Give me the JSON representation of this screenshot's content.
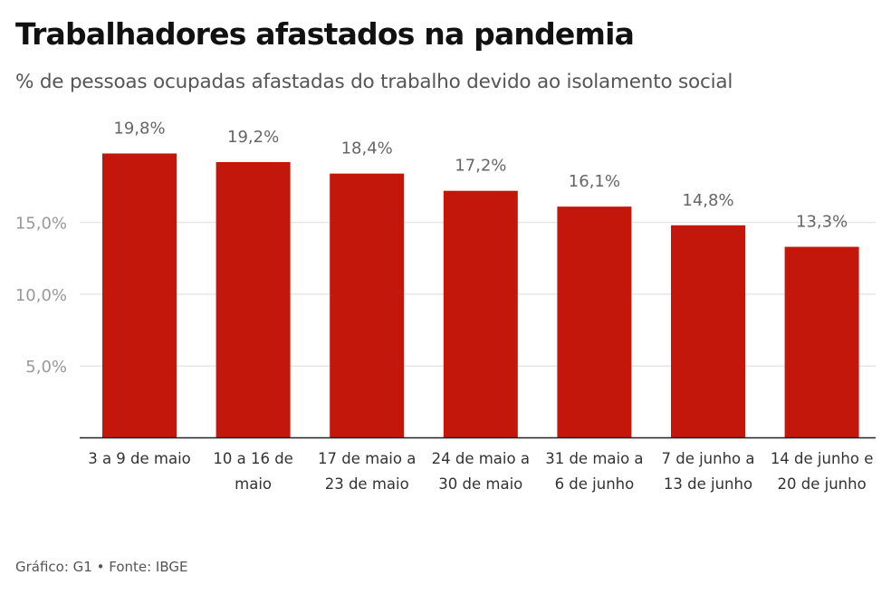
{
  "header": {
    "title": "Trabalhadores afastados na pandemia",
    "subtitle": "% de pessoas ocupadas afastadas do trabalho devido ao isolamento social"
  },
  "footer": {
    "source": "Gráfico: G1 • Fonte: IBGE"
  },
  "chart_data": {
    "type": "bar",
    "title": "Trabalhadores afastados na pandemia",
    "subtitle": "% de pessoas ocupadas afastadas do trabalho devido ao isolamento social",
    "categories": [
      [
        "3 a 9 de maio"
      ],
      [
        "10 a 16 de",
        "maio"
      ],
      [
        "17 de maio a",
        "23 de maio"
      ],
      [
        "24 de maio a",
        "30 de maio"
      ],
      [
        "31 de maio a",
        "6 de junho"
      ],
      [
        "7 de junho a",
        "13 de junho"
      ],
      [
        "14 de junho e",
        "20 de junho"
      ]
    ],
    "values": [
      19.8,
      19.2,
      18.4,
      17.2,
      16.1,
      14.8,
      13.3
    ],
    "data_labels": [
      "19,8%",
      "19,2%",
      "18,4%",
      "17,2%",
      "16,1%",
      "14,8%",
      "13,3%"
    ],
    "yticks": [
      5,
      10,
      15
    ],
    "ytick_labels": [
      "5,0%",
      "10,0%",
      "15,0%"
    ],
    "ylim": [
      0,
      20
    ],
    "grid": true,
    "bar_color": "#c4170c"
  }
}
